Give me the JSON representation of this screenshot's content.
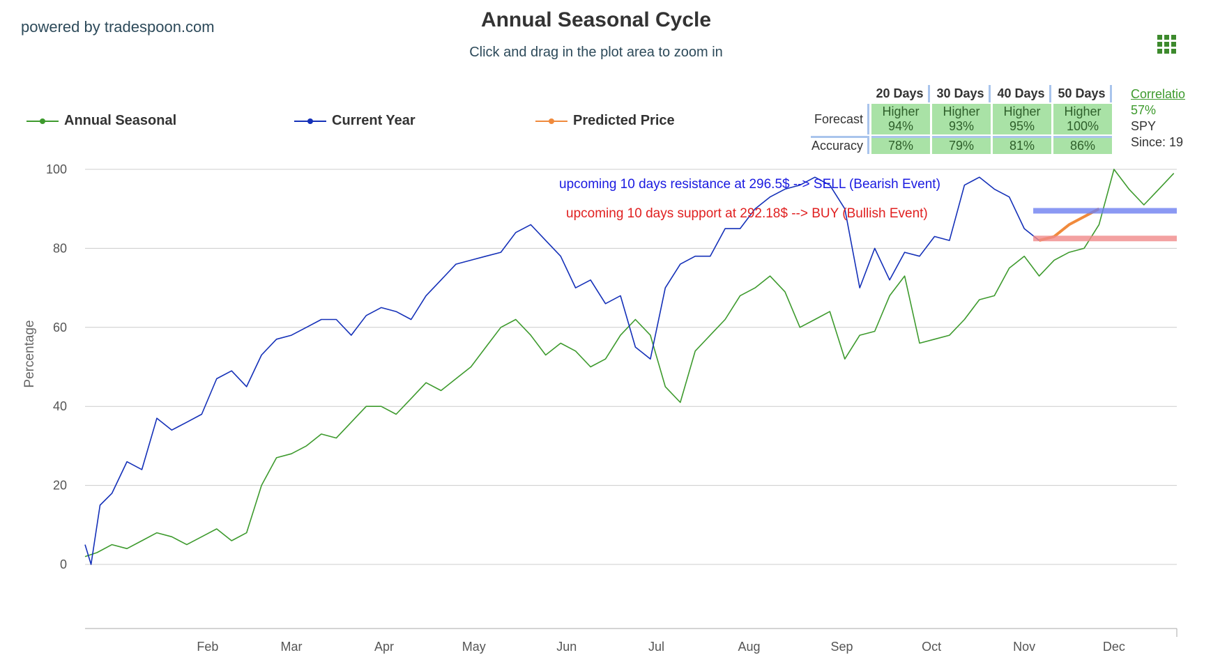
{
  "header": {
    "brand": "powered by tradespoon.com",
    "title": "Annual Seasonal Cycle",
    "subtitle": "Click and drag in the plot area to zoom in"
  },
  "legend": [
    {
      "name": "Annual Seasonal",
      "color": "#3d9a2d"
    },
    {
      "name": "Current Year",
      "color": "#1430b8"
    },
    {
      "name": "Predicted Price",
      "color": "#f08a3c"
    }
  ],
  "stats_table": {
    "columns": [
      "20 Days",
      "30 Days",
      "40 Days",
      "50 Days"
    ],
    "forecast_label": "Forecast",
    "forecast": [
      {
        "direction": "Higher",
        "pct": "94%"
      },
      {
        "direction": "Higher",
        "pct": "93%"
      },
      {
        "direction": "Higher",
        "pct": "95%"
      },
      {
        "direction": "Higher",
        "pct": "100%"
      }
    ],
    "accuracy_label": "Accuracy",
    "accuracy": [
      "78%",
      "79%",
      "81%",
      "86%"
    ]
  },
  "side_info": {
    "correlation_label": "Correlatio",
    "correlation_value": "57%",
    "symbol": "SPY",
    "since": "Since: 19"
  },
  "chart_data": {
    "type": "line",
    "title": "Annual Seasonal Cycle",
    "subtitle": "Click and drag in the plot area to zoom in",
    "ylabel": "Percentage",
    "ylim": [
      -16,
      100
    ],
    "yticks": [
      0,
      20,
      40,
      60,
      80,
      100
    ],
    "xtick_labels": [
      "Feb",
      "Mar",
      "Apr",
      "May",
      "Jun",
      "Jul",
      "Aug",
      "Sep",
      "Oct",
      "Nov",
      "Dec"
    ],
    "grid": true,
    "legend_position": "top",
    "x_unit": "day-of-year",
    "series": [
      {
        "name": "Annual Seasonal",
        "color": "#3d9a2d",
        "points": [
          [
            1,
            2
          ],
          [
            5,
            3
          ],
          [
            10,
            5
          ],
          [
            15,
            4
          ],
          [
            20,
            6
          ],
          [
            25,
            8
          ],
          [
            30,
            7
          ],
          [
            35,
            5
          ],
          [
            40,
            7
          ],
          [
            45,
            9
          ],
          [
            50,
            6
          ],
          [
            55,
            8
          ],
          [
            60,
            20
          ],
          [
            65,
            27
          ],
          [
            70,
            28
          ],
          [
            75,
            30
          ],
          [
            80,
            33
          ],
          [
            85,
            32
          ],
          [
            90,
            36
          ],
          [
            95,
            40
          ],
          [
            100,
            40
          ],
          [
            105,
            38
          ],
          [
            110,
            42
          ],
          [
            115,
            46
          ],
          [
            120,
            44
          ],
          [
            125,
            47
          ],
          [
            130,
            50
          ],
          [
            135,
            55
          ],
          [
            140,
            60
          ],
          [
            145,
            62
          ],
          [
            150,
            58
          ],
          [
            155,
            53
          ],
          [
            160,
            56
          ],
          [
            165,
            54
          ],
          [
            170,
            50
          ],
          [
            175,
            52
          ],
          [
            180,
            58
          ],
          [
            185,
            62
          ],
          [
            190,
            58
          ],
          [
            195,
            45
          ],
          [
            200,
            41
          ],
          [
            205,
            54
          ],
          [
            210,
            58
          ],
          [
            215,
            62
          ],
          [
            220,
            68
          ],
          [
            225,
            70
          ],
          [
            230,
            73
          ],
          [
            235,
            69
          ],
          [
            240,
            60
          ],
          [
            245,
            62
          ],
          [
            250,
            64
          ],
          [
            255,
            52
          ],
          [
            260,
            58
          ],
          [
            265,
            59
          ],
          [
            270,
            68
          ],
          [
            275,
            73
          ],
          [
            280,
            56
          ],
          [
            285,
            57
          ],
          [
            290,
            58
          ],
          [
            295,
            62
          ],
          [
            300,
            67
          ],
          [
            305,
            68
          ],
          [
            310,
            75
          ],
          [
            315,
            78
          ],
          [
            320,
            73
          ],
          [
            325,
            77
          ],
          [
            330,
            79
          ],
          [
            335,
            80
          ],
          [
            340,
            86
          ],
          [
            345,
            100
          ],
          [
            350,
            95
          ],
          [
            355,
            91
          ],
          [
            360,
            95
          ],
          [
            365,
            99
          ]
        ]
      },
      {
        "name": "Current Year",
        "color": "#1430b8",
        "points": [
          [
            1,
            5
          ],
          [
            3,
            0
          ],
          [
            6,
            15
          ],
          [
            10,
            18
          ],
          [
            15,
            26
          ],
          [
            20,
            24
          ],
          [
            25,
            37
          ],
          [
            30,
            34
          ],
          [
            35,
            36
          ],
          [
            40,
            38
          ],
          [
            45,
            47
          ],
          [
            50,
            49
          ],
          [
            55,
            45
          ],
          [
            60,
            53
          ],
          [
            65,
            57
          ],
          [
            70,
            58
          ],
          [
            75,
            60
          ],
          [
            80,
            62
          ],
          [
            85,
            62
          ],
          [
            90,
            58
          ],
          [
            95,
            63
          ],
          [
            100,
            65
          ],
          [
            105,
            64
          ],
          [
            110,
            62
          ],
          [
            115,
            68
          ],
          [
            120,
            72
          ],
          [
            125,
            76
          ],
          [
            130,
            77
          ],
          [
            135,
            78
          ],
          [
            140,
            79
          ],
          [
            145,
            84
          ],
          [
            150,
            86
          ],
          [
            155,
            82
          ],
          [
            160,
            78
          ],
          [
            165,
            70
          ],
          [
            170,
            72
          ],
          [
            175,
            66
          ],
          [
            180,
            68
          ],
          [
            185,
            55
          ],
          [
            190,
            52
          ],
          [
            195,
            70
          ],
          [
            200,
            76
          ],
          [
            205,
            78
          ],
          [
            210,
            78
          ],
          [
            215,
            85
          ],
          [
            220,
            85
          ],
          [
            225,
            90
          ],
          [
            230,
            93
          ],
          [
            235,
            95
          ],
          [
            240,
            96
          ],
          [
            245,
            98
          ],
          [
            250,
            96
          ],
          [
            255,
            90
          ],
          [
            260,
            70
          ],
          [
            265,
            80
          ],
          [
            270,
            72
          ],
          [
            275,
            79
          ],
          [
            280,
            78
          ],
          [
            285,
            83
          ],
          [
            290,
            82
          ],
          [
            295,
            96
          ],
          [
            300,
            98
          ],
          [
            305,
            95
          ],
          [
            310,
            93
          ],
          [
            315,
            85
          ],
          [
            320,
            82
          ]
        ]
      },
      {
        "name": "Predicted Price",
        "color": "#f08a3c",
        "points": [
          [
            320,
            82
          ],
          [
            325,
            83
          ],
          [
            330,
            86
          ],
          [
            335,
            88
          ],
          [
            340,
            90
          ]
        ]
      }
    ],
    "reference_lines": [
      {
        "label": "resistance",
        "y": 89.5,
        "x_start": 318,
        "color": "#6e80f0"
      },
      {
        "label": "support",
        "y": 82.5,
        "x_start": 318,
        "color": "#f08a8a"
      }
    ],
    "annotations": [
      {
        "text": "upcoming 10 days resistance at 296.5$ --> SELL (Bearish Event)",
        "color": "#1a1ae0"
      },
      {
        "text": "upcoming 10 days support at 292.18$ --> BUY (Bullish Event)",
        "color": "#e02020"
      }
    ]
  }
}
